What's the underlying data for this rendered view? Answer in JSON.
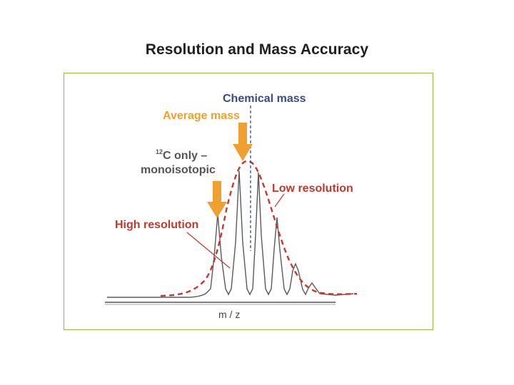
{
  "slide": {
    "title": "Resolution and Mass Accuracy"
  },
  "figure": {
    "labels": {
      "chemical_mass": "Chemical mass",
      "average_mass": "Average mass",
      "mono_sup": "12",
      "mono_line1": "C only –",
      "mono_line2": "monoisotopic",
      "low_resolution": "Low resolution",
      "high_resolution": "High resolution",
      "axis_label": "m / z"
    },
    "colors": {
      "chemical_mass": "#3a4a8c",
      "arrow_orange": "#f0a030",
      "label_orange": "#f0a030",
      "label_red": "#c0392b",
      "low_res_curve": "#d0342c",
      "high_res_trace": "#555555",
      "frame": "#9bbb3c"
    }
  }
}
